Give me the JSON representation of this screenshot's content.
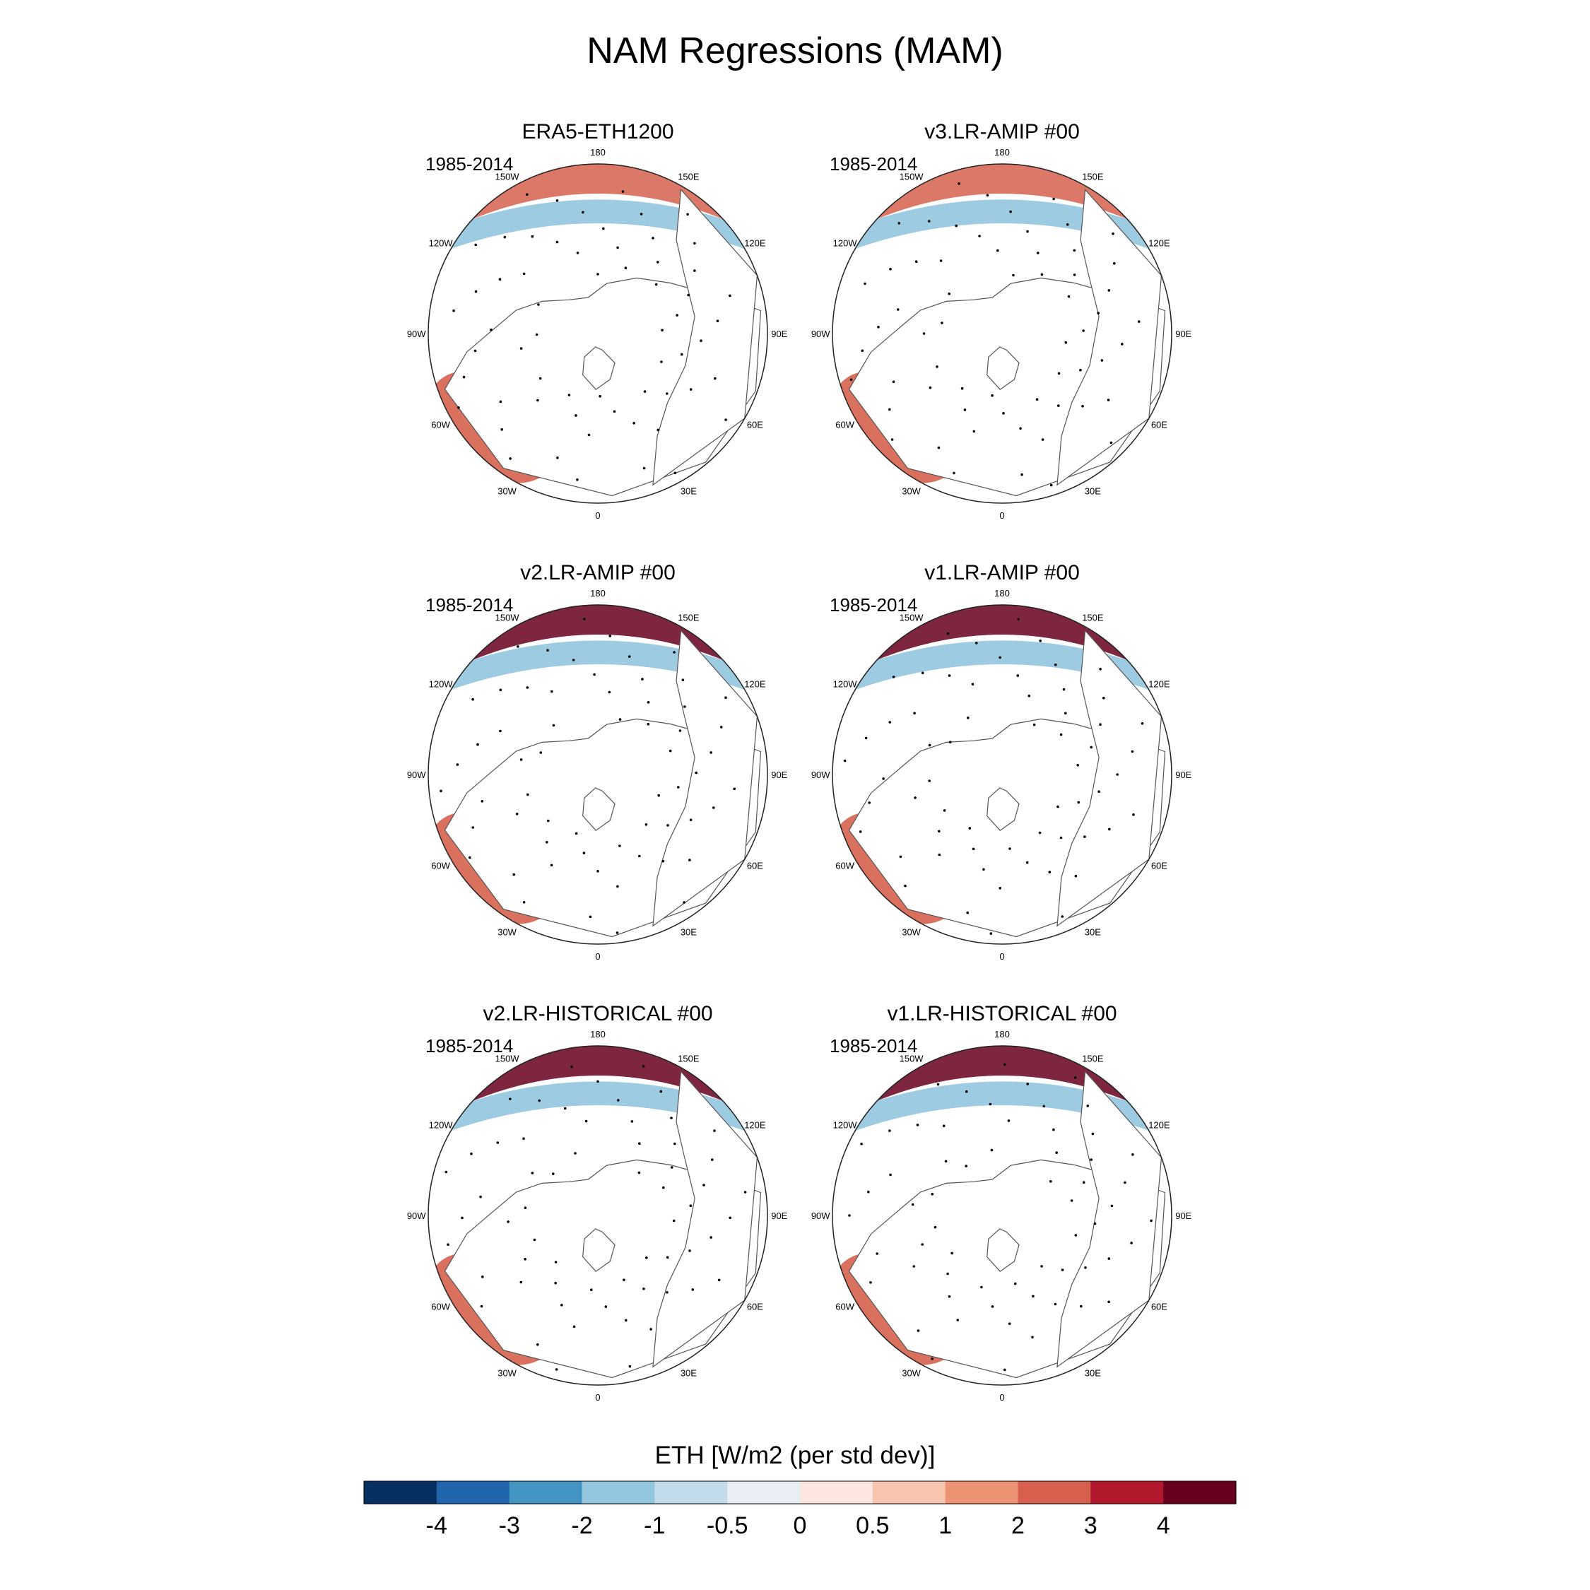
{
  "chart_data": {
    "type": "heatmap",
    "title": "NAM Regressions (MAM)",
    "projection": "north polar stereographic",
    "longitude_labels": [
      "180",
      "150E",
      "120E",
      "90E",
      "60E",
      "30E",
      "0",
      "30W",
      "60W",
      "90W",
      "120W",
      "150W"
    ],
    "panels": [
      {
        "name": "ERA5-ETH1200",
        "period": "1985-2014"
      },
      {
        "name": "v3.LR-AMIP  #00",
        "period": "1985-2014"
      },
      {
        "name": "v2.LR-AMIP  #00",
        "period": "1985-2014"
      },
      {
        "name": "v1.LR-AMIP  #00",
        "period": "1985-2014"
      },
      {
        "name": "v2.LR-HISTORICAL  #00",
        "period": "1985-2014"
      },
      {
        "name": "v1.LR-HISTORICAL  #00",
        "period": "1985-2014"
      }
    ],
    "colorbar": {
      "label": "ETH [W/m2 (per std dev)]",
      "tick_labels": [
        "-4",
        "-3",
        "-2",
        "-1",
        "-0.5",
        "0",
        "0.5",
        "1",
        "2",
        "3",
        "4"
      ],
      "colors": [
        "#053061",
        "#2166ac",
        "#4393c3",
        "#92c5de",
        "#c3dcec",
        "#e8eef4",
        "#fbe7e0",
        "#f7c4ad",
        "#ec9374",
        "#d6604d",
        "#b2182b",
        "#67001f"
      ]
    }
  }
}
